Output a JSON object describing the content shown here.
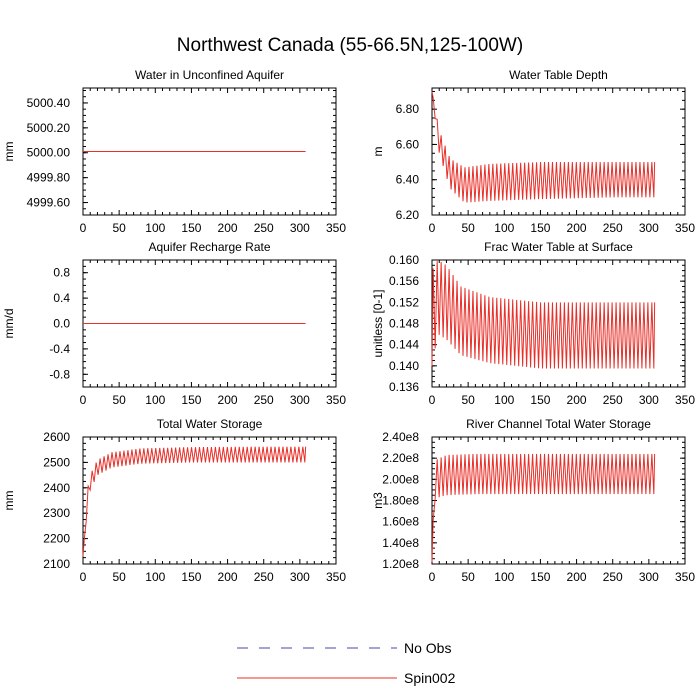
{
  "figure": {
    "title": "Northwest Canada (55-66.5N,125-100W)",
    "legend": [
      {
        "name": "No Obs",
        "style": "dashed",
        "color": "#4a4aa8"
      },
      {
        "name": "Spin002",
        "style": "solid",
        "color": "#e8302a"
      }
    ]
  },
  "chart_data": [
    {
      "type": "line",
      "title": "Water in Unconfined Aquifer",
      "ylabel": "mm",
      "xlim": [
        0,
        350
      ],
      "ylim": [
        4999.5,
        5000.52
      ],
      "xticks": [
        0,
        50,
        100,
        150,
        200,
        250,
        300,
        350
      ],
      "yticks": [
        4999.6,
        4999.8,
        5000.0,
        5000.2,
        5000.4
      ],
      "ytick_labels": [
        "4999.60",
        "4999.80",
        "5000.00",
        "5000.20",
        "5000.40"
      ],
      "series": [
        {
          "name": "Spin002",
          "shape": "constant",
          "x_start": 0,
          "x_end": 308,
          "value": 5000.01
        }
      ]
    },
    {
      "type": "line",
      "title": "Water Table Depth",
      "ylabel": "m",
      "xlim": [
        0,
        350
      ],
      "ylim": [
        6.2,
        6.92
      ],
      "xticks": [
        0,
        50,
        100,
        150,
        200,
        250,
        300,
        350
      ],
      "yticks": [
        6.2,
        6.4,
        6.6,
        6.8
      ],
      "ytick_labels": [
        "6.20",
        "6.40",
        "6.60",
        "6.80"
      ],
      "series": [
        {
          "name": "Spin002",
          "shape": "oscillating-decay",
          "x_start": 0,
          "x_end": 308,
          "start_value": 6.9,
          "cycle_length": 5.5,
          "envelope_high": [
            6.9,
            6.68,
            6.52,
            6.47,
            6.49,
            6.5,
            6.5,
            6.5
          ],
          "envelope_low": [
            6.9,
            6.55,
            6.35,
            6.27,
            6.28,
            6.29,
            6.3,
            6.3
          ],
          "envelope_x": [
            0,
            10,
            25,
            45,
            80,
            150,
            250,
            308
          ]
        }
      ]
    },
    {
      "type": "line",
      "title": "Aquifer Recharge Rate",
      "ylabel": "mm/d",
      "xlim": [
        0,
        350
      ],
      "ylim": [
        -1.0,
        1.0
      ],
      "xticks": [
        0,
        50,
        100,
        150,
        200,
        250,
        300,
        350
      ],
      "yticks": [
        -0.8,
        -0.4,
        0.0,
        0.4,
        0.8
      ],
      "ytick_labels": [
        "-0.8",
        "-0.4",
        "0.0",
        "0.4",
        "0.8"
      ],
      "series": [
        {
          "name": "Spin002",
          "shape": "constant",
          "x_start": 0,
          "x_end": 308,
          "value": 0.0
        }
      ]
    },
    {
      "type": "line",
      "title": "Frac Water Table at Surface",
      "ylabel": "unitless [0-1]",
      "xlim": [
        0,
        350
      ],
      "ylim": [
        0.136,
        0.16
      ],
      "xticks": [
        0,
        50,
        100,
        150,
        200,
        250,
        300,
        350
      ],
      "yticks": [
        0.136,
        0.14,
        0.144,
        0.148,
        0.152,
        0.156,
        0.16
      ],
      "ytick_labels": [
        "0.136",
        "0.140",
        "0.144",
        "0.148",
        "0.152",
        "0.156",
        "0.160"
      ],
      "series": [
        {
          "name": "Spin002",
          "shape": "oscillating-decay",
          "x_start": 0,
          "x_end": 308,
          "start_value": 0.14,
          "cycle_length": 5.5,
          "envelope_high": [
            0.158,
            0.16,
            0.159,
            0.155,
            0.153,
            0.152,
            0.152,
            0.152
          ],
          "envelope_low": [
            0.14,
            0.146,
            0.145,
            0.142,
            0.1405,
            0.1395,
            0.1395,
            0.1395
          ],
          "envelope_x": [
            0,
            8,
            20,
            40,
            80,
            150,
            250,
            308
          ]
        }
      ]
    },
    {
      "type": "line",
      "title": "Total Water Storage",
      "ylabel": "mm",
      "xlim": [
        0,
        350
      ],
      "ylim": [
        2100,
        2600
      ],
      "xticks": [
        0,
        50,
        100,
        150,
        200,
        250,
        300,
        350
      ],
      "yticks": [
        2100,
        2200,
        2300,
        2400,
        2500,
        2600
      ],
      "ytick_labels": [
        "2100",
        "2200",
        "2300",
        "2400",
        "2500",
        "2600"
      ],
      "series": [
        {
          "name": "Spin002",
          "shape": "oscillating-rise",
          "x_start": 0,
          "x_end": 308,
          "start_value": 2130,
          "cycle_length": 5.5,
          "envelope_high": [
            2130,
            2440,
            2510,
            2540,
            2555,
            2560,
            2562,
            2562
          ],
          "envelope_low": [
            2130,
            2380,
            2450,
            2480,
            2495,
            2500,
            2500,
            2500
          ],
          "envelope_x": [
            0,
            8,
            20,
            40,
            80,
            150,
            250,
            308
          ]
        }
      ]
    },
    {
      "type": "line",
      "title": "River Channel Total Water Storage",
      "ylabel": "m3",
      "xlim": [
        0,
        350
      ],
      "ylim": [
        120000000,
        240000000
      ],
      "xticks": [
        0,
        50,
        100,
        150,
        200,
        250,
        300,
        350
      ],
      "yticks": [
        120000000,
        140000000,
        160000000,
        180000000,
        200000000,
        220000000,
        240000000
      ],
      "ytick_labels": [
        "1.20e8",
        "1.40e8",
        "1.60e8",
        "1.80e8",
        "2.00e8",
        "2.20e8",
        "2.40e8"
      ],
      "series": [
        {
          "name": "Spin002",
          "shape": "oscillating-rise",
          "x_start": 0,
          "x_end": 308,
          "start_value": 122000000,
          "cycle_length": 5.5,
          "envelope_high": [
            122000000,
            218000000,
            223000000,
            224000000,
            224000000,
            224000000
          ],
          "envelope_low": [
            122000000,
            182000000,
            185000000,
            186000000,
            186000000,
            186000000
          ],
          "envelope_x": [
            0,
            4,
            20,
            60,
            150,
            308
          ]
        }
      ]
    }
  ]
}
